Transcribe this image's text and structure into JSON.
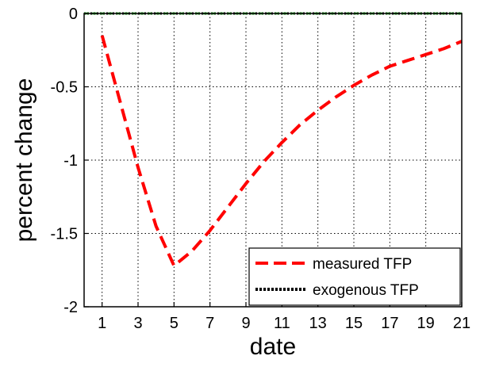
{
  "chart_data": {
    "type": "line",
    "xlabel": "date",
    "ylabel": "percent change",
    "xlim": [
      0,
      21
    ],
    "ylim": [
      -2,
      0
    ],
    "x_ticks": [
      "1",
      "3",
      "5",
      "7",
      "9",
      "11",
      "13",
      "15",
      "17",
      "19",
      "21"
    ],
    "y_ticks": [
      "0",
      "-0.5",
      "-1",
      "-1.5",
      "-2"
    ],
    "grid": true,
    "legend_position": "bottom-right",
    "series": [
      {
        "name": "measured TFP",
        "color": "#ff0000",
        "style": "dashed",
        "x": [
          1,
          2,
          3,
          4,
          5,
          6,
          7,
          8,
          9,
          10,
          11,
          12,
          13,
          14,
          15,
          16,
          17,
          18,
          19,
          20,
          21
        ],
        "y": [
          -0.15,
          -0.6,
          -1.05,
          -1.45,
          -1.72,
          -1.62,
          -1.48,
          -1.32,
          -1.16,
          -1.01,
          -0.88,
          -0.76,
          -0.66,
          -0.57,
          -0.49,
          -0.42,
          -0.36,
          -0.32,
          -0.28,
          -0.24,
          -0.19
        ]
      },
      {
        "name": "exogenous TFP",
        "color": "#000000",
        "style": "dotted",
        "x": [
          0,
          21
        ],
        "y": [
          0,
          0
        ]
      },
      {
        "name": "",
        "color": "#00aa00",
        "style": "dashed",
        "x": [
          0,
          21
        ],
        "y": [
          0,
          0
        ]
      }
    ]
  }
}
